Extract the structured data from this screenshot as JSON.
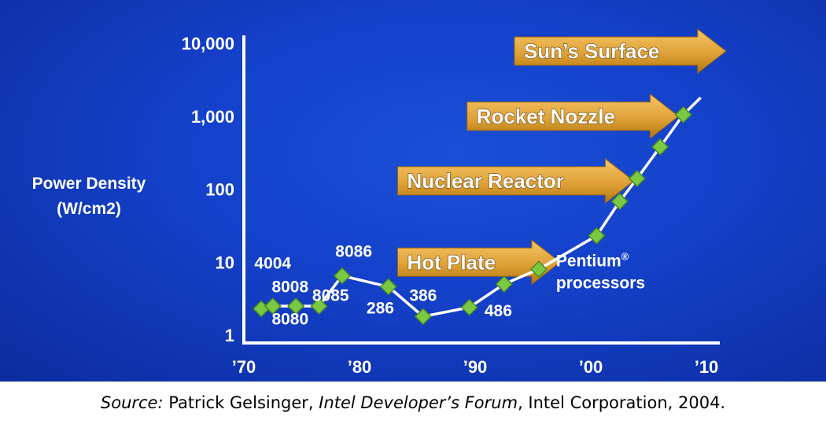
{
  "chart_data": {
    "type": "scatter",
    "ylabel_lines": [
      "Power Density",
      "(W/cm2)"
    ],
    "y_scale": "log",
    "ylim": [
      1,
      10000
    ],
    "y_ticks": [
      {
        "value": 1,
        "label": "1"
      },
      {
        "value": 10,
        "label": "10"
      },
      {
        "value": 100,
        "label": "100"
      },
      {
        "value": 1000,
        "label": "1,000"
      },
      {
        "value": 10000,
        "label": "10,000"
      }
    ],
    "xlim": [
      1970,
      2010
    ],
    "x_ticks": [
      {
        "value": 1970,
        "label": "’70"
      },
      {
        "value": 1980,
        "label": "’80"
      },
      {
        "value": 1990,
        "label": "’90"
      },
      {
        "value": 2000,
        "label": "’00"
      },
      {
        "value": 2010,
        "label": "’10"
      }
    ],
    "points": [
      {
        "x": 1971.5,
        "y": 2.3
      },
      {
        "x": 1972.5,
        "y": 2.5
      },
      {
        "x": 1974.5,
        "y": 2.5
      },
      {
        "x": 1976.5,
        "y": 2.5
      },
      {
        "x": 1978.5,
        "y": 6.5
      },
      {
        "x": 1982.5,
        "y": 4.6
      },
      {
        "x": 1985.5,
        "y": 1.8
      },
      {
        "x": 1989.5,
        "y": 2.4
      },
      {
        "x": 1992.5,
        "y": 5
      },
      {
        "x": 1995.5,
        "y": 8
      },
      {
        "x": 2000.5,
        "y": 23
      },
      {
        "x": 2002.5,
        "y": 68
      },
      {
        "x": 2004,
        "y": 140
      },
      {
        "x": 2006,
        "y": 380
      },
      {
        "x": 2008,
        "y": 1050
      }
    ],
    "trend_end": {
      "x": 2009.5,
      "y": 1800
    },
    "point_labels": [
      {
        "text": "4004",
        "x": 1972.5,
        "y": 10
      },
      {
        "text": "8008",
        "x": 1974,
        "y": 4.7
      },
      {
        "text": "8080",
        "x": 1974,
        "y": 1.7
      },
      {
        "text": "8085",
        "x": 1977.5,
        "y": 3.6
      },
      {
        "text": "8086",
        "x": 1979.5,
        "y": 14.5
      },
      {
        "text": "286",
        "x": 1981.8,
        "y": 2.4
      },
      {
        "text": "386",
        "x": 1985.5,
        "y": 3.6
      },
      {
        "text": "486",
        "x": 1992,
        "y": 2.2
      }
    ],
    "annotations": [
      {
        "text": "Hot Plate",
        "x": 1983.3,
        "y": 10
      },
      {
        "text": "Nuclear Reactor",
        "x": 1983.3,
        "y": 130
      },
      {
        "text": "Rocket Nozzle",
        "x": 1989.3,
        "y": 1000
      },
      {
        "text": "Sun’s Surface",
        "x": 1993.4,
        "y": 7800
      }
    ],
    "series_note": {
      "line1": "Pentium",
      "reg": "®",
      "line2": "processors",
      "x": 1997,
      "y": 6.5
    },
    "colors": {
      "background": "#1543cc",
      "axis": "#ffffff",
      "line": "#ffffff",
      "marker": "#7ac943",
      "marker_edge": "#4a8a22",
      "arrow_light": "#f4c466",
      "arrow_dark": "#b47810",
      "text": "#ffffff"
    }
  },
  "source": {
    "label": "Source:",
    "author": " Patrick Gelsinger, ",
    "publication": "Intel Developer’s Forum",
    "rest": ", Intel Corporation, 2004."
  }
}
